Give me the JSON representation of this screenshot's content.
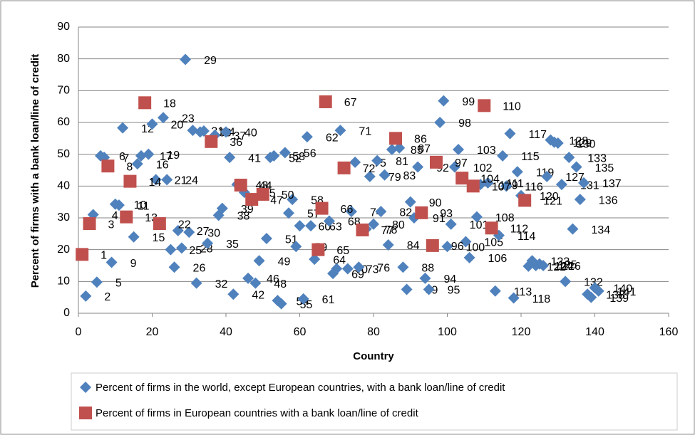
{
  "chart_data": {
    "type": "scatter",
    "x_label": "Country",
    "y_label": "Percent of firms with a bank loan/line of credit",
    "xlim": [
      0,
      160
    ],
    "xticks": [
      0,
      20,
      40,
      60,
      80,
      100,
      120,
      140,
      160
    ],
    "ylim": [
      0,
      90
    ],
    "yticks": [
      0,
      10,
      20,
      30,
      40,
      50,
      60,
      70,
      80,
      90
    ],
    "grid": true,
    "legend": "bottom",
    "series": [
      {
        "name": "Percent of firms in the world, except European countries, with a bank loan/line of credit",
        "color": "#4f81bd",
        "marker": "diamond",
        "x": [
          2,
          4,
          5,
          6,
          7,
          9,
          10,
          11,
          12,
          15,
          16,
          17,
          19,
          20,
          21,
          23,
          24,
          25,
          26,
          27,
          28,
          29,
          30,
          31,
          32,
          33,
          34,
          35,
          37,
          38,
          39,
          40,
          41,
          42,
          43,
          45,
          46,
          48,
          49,
          51,
          52,
          53,
          54,
          55,
          56,
          57,
          58,
          59,
          60,
          61,
          62,
          63,
          64,
          68,
          69,
          70,
          71,
          73,
          74,
          75,
          76,
          78,
          79,
          80,
          81,
          82,
          83,
          84,
          85,
          87,
          88,
          89,
          90,
          91,
          92,
          94,
          95,
          98,
          99,
          100,
          101,
          102,
          103,
          105,
          106,
          108,
          109,
          111,
          113,
          114,
          115,
          116,
          117,
          118,
          119,
          120,
          122,
          123,
          124,
          125,
          126,
          127,
          128,
          129,
          130,
          131,
          132,
          133,
          134,
          135,
          136,
          137,
          138,
          139,
          140,
          141
        ],
        "values": [
          5.4,
          31,
          9.8,
          49.5,
          49,
          16,
          34.3,
          34,
          58.3,
          24,
          47,
          49.5,
          50,
          59.5,
          42,
          61.5,
          42,
          20,
          14.5,
          26,
          20.5,
          79.8,
          25.5,
          57.5,
          9.5,
          57,
          57.3,
          22,
          56,
          30.8,
          33,
          57,
          49,
          6,
          40.5,
          38,
          11,
          9.5,
          16.5,
          23.5,
          49,
          49.5,
          4,
          3,
          50.5,
          31.5,
          35.8,
          21,
          27.5,
          4.5,
          55.5,
          27.5,
          17,
          29,
          12.5,
          14,
          57.5,
          14,
          32,
          47.5,
          14.5,
          26.5,
          43,
          28,
          48,
          32,
          43.5,
          21.5,
          51.5,
          52,
          14.5,
          7.5,
          35,
          30,
          46,
          11,
          7.5,
          60,
          66.8,
          21,
          28,
          46,
          51.5,
          22.5,
          17.5,
          30.3,
          40.5,
          41,
          7,
          24.5,
          49.5,
          40,
          56.5,
          4.8,
          44.5,
          37,
          14.8,
          16.5,
          15,
          15.5,
          15,
          43,
          54.5,
          53.8,
          53.5,
          40.5,
          10,
          49,
          26.5,
          46,
          35.8,
          41,
          6,
          5,
          8,
          7
        ]
      },
      {
        "name": "Percent of firms in European countries with a bank loan/line of credit",
        "color": "#c0504d",
        "marker": "square",
        "x": [
          1,
          3,
          8,
          13,
          14,
          18,
          22,
          36,
          44,
          47,
          50,
          65,
          66,
          67,
          72,
          77,
          86,
          93,
          96,
          97,
          104,
          107,
          110,
          112,
          121
        ],
        "values": [
          18.5,
          28.2,
          46.3,
          30.3,
          41.5,
          66.2,
          28.2,
          54,
          40.3,
          35.8,
          37.4,
          20,
          33,
          66.5,
          45.7,
          26.2,
          55,
          31.6,
          21.3,
          47.5,
          42.5,
          40,
          65.3,
          26.8,
          35.5
        ]
      }
    ]
  }
}
